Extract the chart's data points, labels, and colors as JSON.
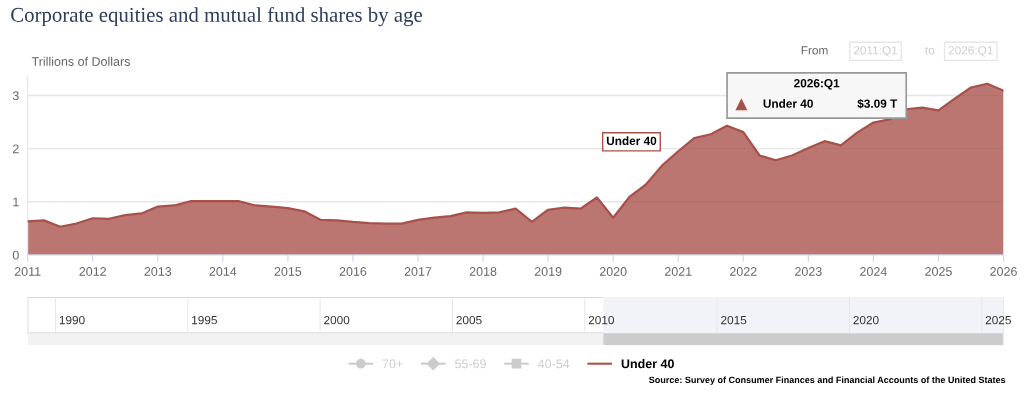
{
  "chart_data": {
    "type": "area",
    "title": "Corporate equities and mutual fund shares by age",
    "ylabel": "Trillions of Dollars",
    "x": [
      2011,
      2011.25,
      2011.5,
      2011.75,
      2012,
      2012.25,
      2012.5,
      2012.75,
      2013,
      2013.25,
      2013.5,
      2013.75,
      2014,
      2014.25,
      2014.5,
      2014.75,
      2015,
      2015.25,
      2015.5,
      2015.75,
      2016,
      2016.25,
      2016.5,
      2016.75,
      2017,
      2017.25,
      2017.5,
      2017.75,
      2018,
      2018.25,
      2018.5,
      2018.75,
      2019,
      2019.25,
      2019.5,
      2019.75,
      2020,
      2020.25,
      2020.5,
      2020.75,
      2021,
      2021.25,
      2021.5,
      2021.75,
      2022,
      2022.25,
      2022.5,
      2022.75,
      2023,
      2023.25,
      2023.5,
      2023.75,
      2024,
      2024.25,
      2024.5,
      2024.75,
      2025,
      2025.25,
      2025.5,
      2025.75,
      2026
    ],
    "series": [
      {
        "name": "70+",
        "color": "#cccccc",
        "marker": "circle",
        "values": [
          null,
          null,
          null,
          null,
          null,
          null,
          null,
          null,
          null,
          null,
          null,
          null,
          null,
          null,
          null,
          null,
          null,
          null,
          null,
          null,
          null,
          null,
          null,
          null,
          null,
          null,
          null,
          null,
          null,
          null,
          null,
          null,
          null,
          null,
          null,
          null,
          null,
          null,
          null,
          null,
          null,
          null,
          null,
          null,
          null,
          null,
          null,
          null,
          null,
          null,
          null,
          null,
          null,
          null,
          null,
          null,
          null,
          null,
          null,
          null,
          null
        ]
      },
      {
        "name": "55-69",
        "color": "#cccccc",
        "marker": "diamond",
        "values": [
          null,
          null,
          null,
          null,
          null,
          null,
          null,
          null,
          null,
          null,
          null,
          null,
          null,
          null,
          null,
          null,
          null,
          null,
          null,
          null,
          null,
          null,
          null,
          null,
          null,
          null,
          null,
          null,
          null,
          null,
          null,
          null,
          null,
          null,
          null,
          null,
          null,
          null,
          null,
          null,
          null,
          null,
          null,
          null,
          null,
          null,
          null,
          null,
          null,
          null,
          null,
          null,
          null,
          null,
          null,
          null,
          null,
          null,
          null,
          null,
          null
        ]
      },
      {
        "name": "40-54",
        "color": "#cccccc",
        "marker": "square",
        "values": [
          null,
          null,
          null,
          null,
          null,
          null,
          null,
          null,
          null,
          null,
          null,
          null,
          null,
          null,
          null,
          null,
          null,
          null,
          null,
          null,
          null,
          null,
          null,
          null,
          null,
          null,
          null,
          null,
          null,
          null,
          null,
          null,
          null,
          null,
          null,
          null,
          null,
          null,
          null,
          null,
          null,
          null,
          null,
          null,
          null,
          null,
          null,
          null,
          null,
          null,
          null,
          null,
          null,
          null,
          null,
          null,
          null,
          null,
          null,
          null,
          null
        ]
      },
      {
        "name": "Under 40",
        "color": "#a8504a",
        "values": [
          0.63,
          0.65,
          0.53,
          0.59,
          0.69,
          0.68,
          0.75,
          0.78,
          0.91,
          0.93,
          1.01,
          1.01,
          1.01,
          1.01,
          0.93,
          0.91,
          0.88,
          0.82,
          0.66,
          0.65,
          0.62,
          0.6,
          0.59,
          0.59,
          0.66,
          0.7,
          0.73,
          0.8,
          0.79,
          0.8,
          0.87,
          0.62,
          0.85,
          0.89,
          0.87,
          1.08,
          0.7,
          1.09,
          1.32,
          1.68,
          1.95,
          2.2,
          2.27,
          2.43,
          2.31,
          1.87,
          1.78,
          1.87,
          2.01,
          2.14,
          2.06,
          2.3,
          2.49,
          2.55,
          2.74,
          2.77,
          2.72,
          2.94,
          3.15,
          3.22,
          3.09
        ]
      }
    ],
    "xlim": [
      2011,
      2026
    ],
    "xticks": [
      2011,
      2012,
      2013,
      2014,
      2015,
      2016,
      2017,
      2018,
      2019,
      2020,
      2021,
      2022,
      2023,
      2024,
      2025,
      2026
    ],
    "ylim": [
      0,
      3.35
    ],
    "yticks": [
      0,
      1,
      2,
      3
    ],
    "grid": "y",
    "legend": "bottom",
    "annotations": [
      "Under 40",
      "From",
      "2011:Q1",
      "to",
      "2026:Q1",
      "2026:Q1",
      "Under 40",
      "$3.09 T",
      "Source: Survey of Consumer Finances and Financial Accounts of the United States",
      "1990",
      "1995",
      "2000",
      "2005",
      "2010",
      "2015",
      "2020",
      "2025"
    ]
  }
}
